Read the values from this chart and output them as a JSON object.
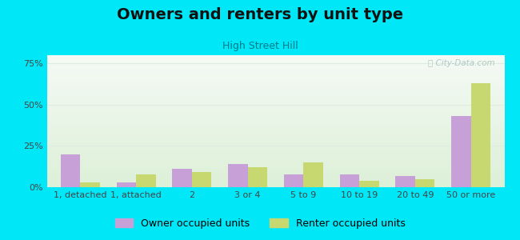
{
  "title": "Owners and renters by unit type",
  "subtitle": "High Street Hill",
  "categories": [
    "1, detached",
    "1, attached",
    "2",
    "3 or 4",
    "5 to 9",
    "10 to 19",
    "20 to 49",
    "50 or more"
  ],
  "owner_values": [
    20,
    3,
    11,
    14,
    8,
    8,
    7,
    43
  ],
  "renter_values": [
    3,
    8,
    9,
    12,
    15,
    4,
    5,
    63
  ],
  "owner_color": "#c8a0d8",
  "renter_color": "#c8d870",
  "background_outer": "#00e8f8",
  "background_top": "#f5faf5",
  "background_bottom": "#ddf0d8",
  "ylim": [
    0,
    80
  ],
  "yticks": [
    0,
    25,
    50,
    75
  ],
  "ytick_labels": [
    "0%",
    "25%",
    "50%",
    "75%"
  ],
  "bar_width": 0.35,
  "legend_owner": "Owner occupied units",
  "legend_renter": "Renter occupied units",
  "title_fontsize": 14,
  "subtitle_fontsize": 9,
  "axis_fontsize": 8,
  "legend_fontsize": 9,
  "title_color": "#111111",
  "subtitle_color": "#007b8a",
  "watermark_color": "#b0c8c8",
  "grid_color": "#e0ece0"
}
